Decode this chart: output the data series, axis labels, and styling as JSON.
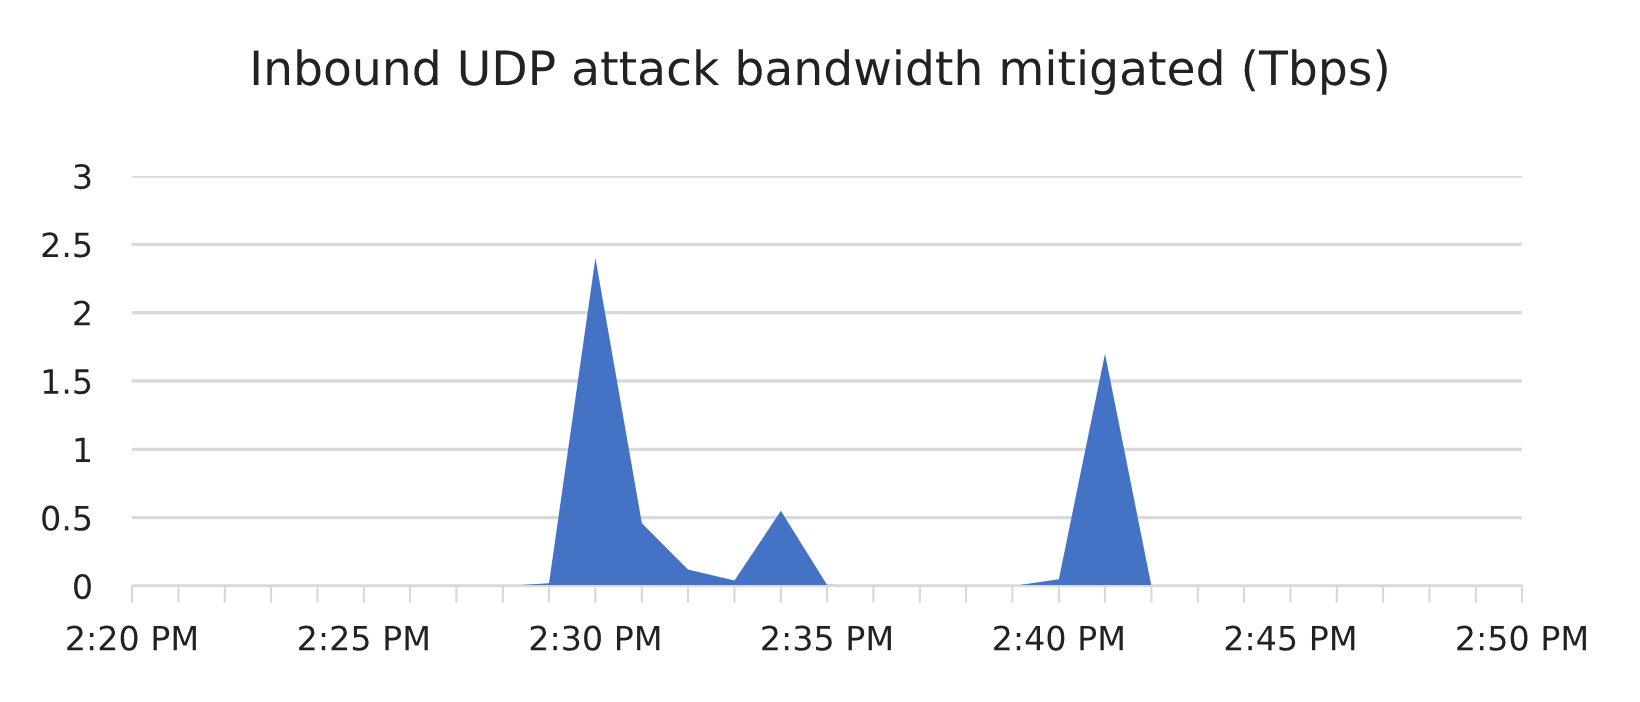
{
  "chart_data": {
    "type": "area",
    "title": "Inbound UDP attack bandwidth mitigated (Tbps)",
    "x": [
      14.3333,
      14.35,
      14.3667,
      14.3833,
      14.4,
      14.4167,
      14.4333,
      14.45,
      14.4667,
      14.4833,
      14.5,
      14.5167,
      14.5333,
      14.55,
      14.5667,
      14.5833,
      14.6,
      14.6167,
      14.6333,
      14.65,
      14.6667,
      14.6833,
      14.7,
      14.7167,
      14.7333,
      14.75,
      14.7667,
      14.7833,
      14.8,
      14.8167,
      14.8333
    ],
    "series": [
      {
        "color": "#4472c4",
        "values": [
          0,
          0,
          0,
          0,
          0,
          0,
          0,
          0,
          0,
          0.02,
          2.4,
          0.46,
          0.12,
          0.04,
          0.55,
          0.01,
          0,
          0,
          0,
          0,
          0.05,
          1.7,
          0,
          0,
          0,
          0,
          0,
          0,
          0,
          0,
          0
        ]
      }
    ],
    "xlim": [
      14.3333,
      14.8333
    ],
    "xticks": [
      {
        "value": 14.3333,
        "label": "2:20 PM"
      },
      {
        "value": 14.35,
        "label": null
      },
      {
        "value": 14.3667,
        "label": null
      },
      {
        "value": 14.3833,
        "label": null
      },
      {
        "value": 14.4,
        "label": null
      },
      {
        "value": 14.4167,
        "label": "2:25 PM"
      },
      {
        "value": 14.4333,
        "label": null
      },
      {
        "value": 14.45,
        "label": null
      },
      {
        "value": 14.4667,
        "label": null
      },
      {
        "value": 14.4833,
        "label": null
      },
      {
        "value": 14.5,
        "label": "2:30 PM"
      },
      {
        "value": 14.5167,
        "label": null
      },
      {
        "value": 14.5333,
        "label": null
      },
      {
        "value": 14.55,
        "label": null
      },
      {
        "value": 14.5667,
        "label": null
      },
      {
        "value": 14.5833,
        "label": "2:35 PM"
      },
      {
        "value": 14.6,
        "label": null
      },
      {
        "value": 14.6167,
        "label": null
      },
      {
        "value": 14.6333,
        "label": null
      },
      {
        "value": 14.65,
        "label": null
      },
      {
        "value": 14.6667,
        "label": "2:40 PM"
      },
      {
        "value": 14.6833,
        "label": null
      },
      {
        "value": 14.7,
        "label": null
      },
      {
        "value": 14.7167,
        "label": null
      },
      {
        "value": 14.7333,
        "label": null
      },
      {
        "value": 14.75,
        "label": "2:45 PM"
      },
      {
        "value": 14.7667,
        "label": null
      },
      {
        "value": 14.7833,
        "label": null
      },
      {
        "value": 14.8,
        "label": null
      },
      {
        "value": 14.8167,
        "label": null
      },
      {
        "value": 14.8333,
        "label": "2:50 PM"
      }
    ],
    "ylim": [
      0,
      3
    ],
    "yticks": [
      0,
      0.5,
      1,
      1.5,
      2,
      2.5,
      3
    ],
    "grid": "y"
  }
}
